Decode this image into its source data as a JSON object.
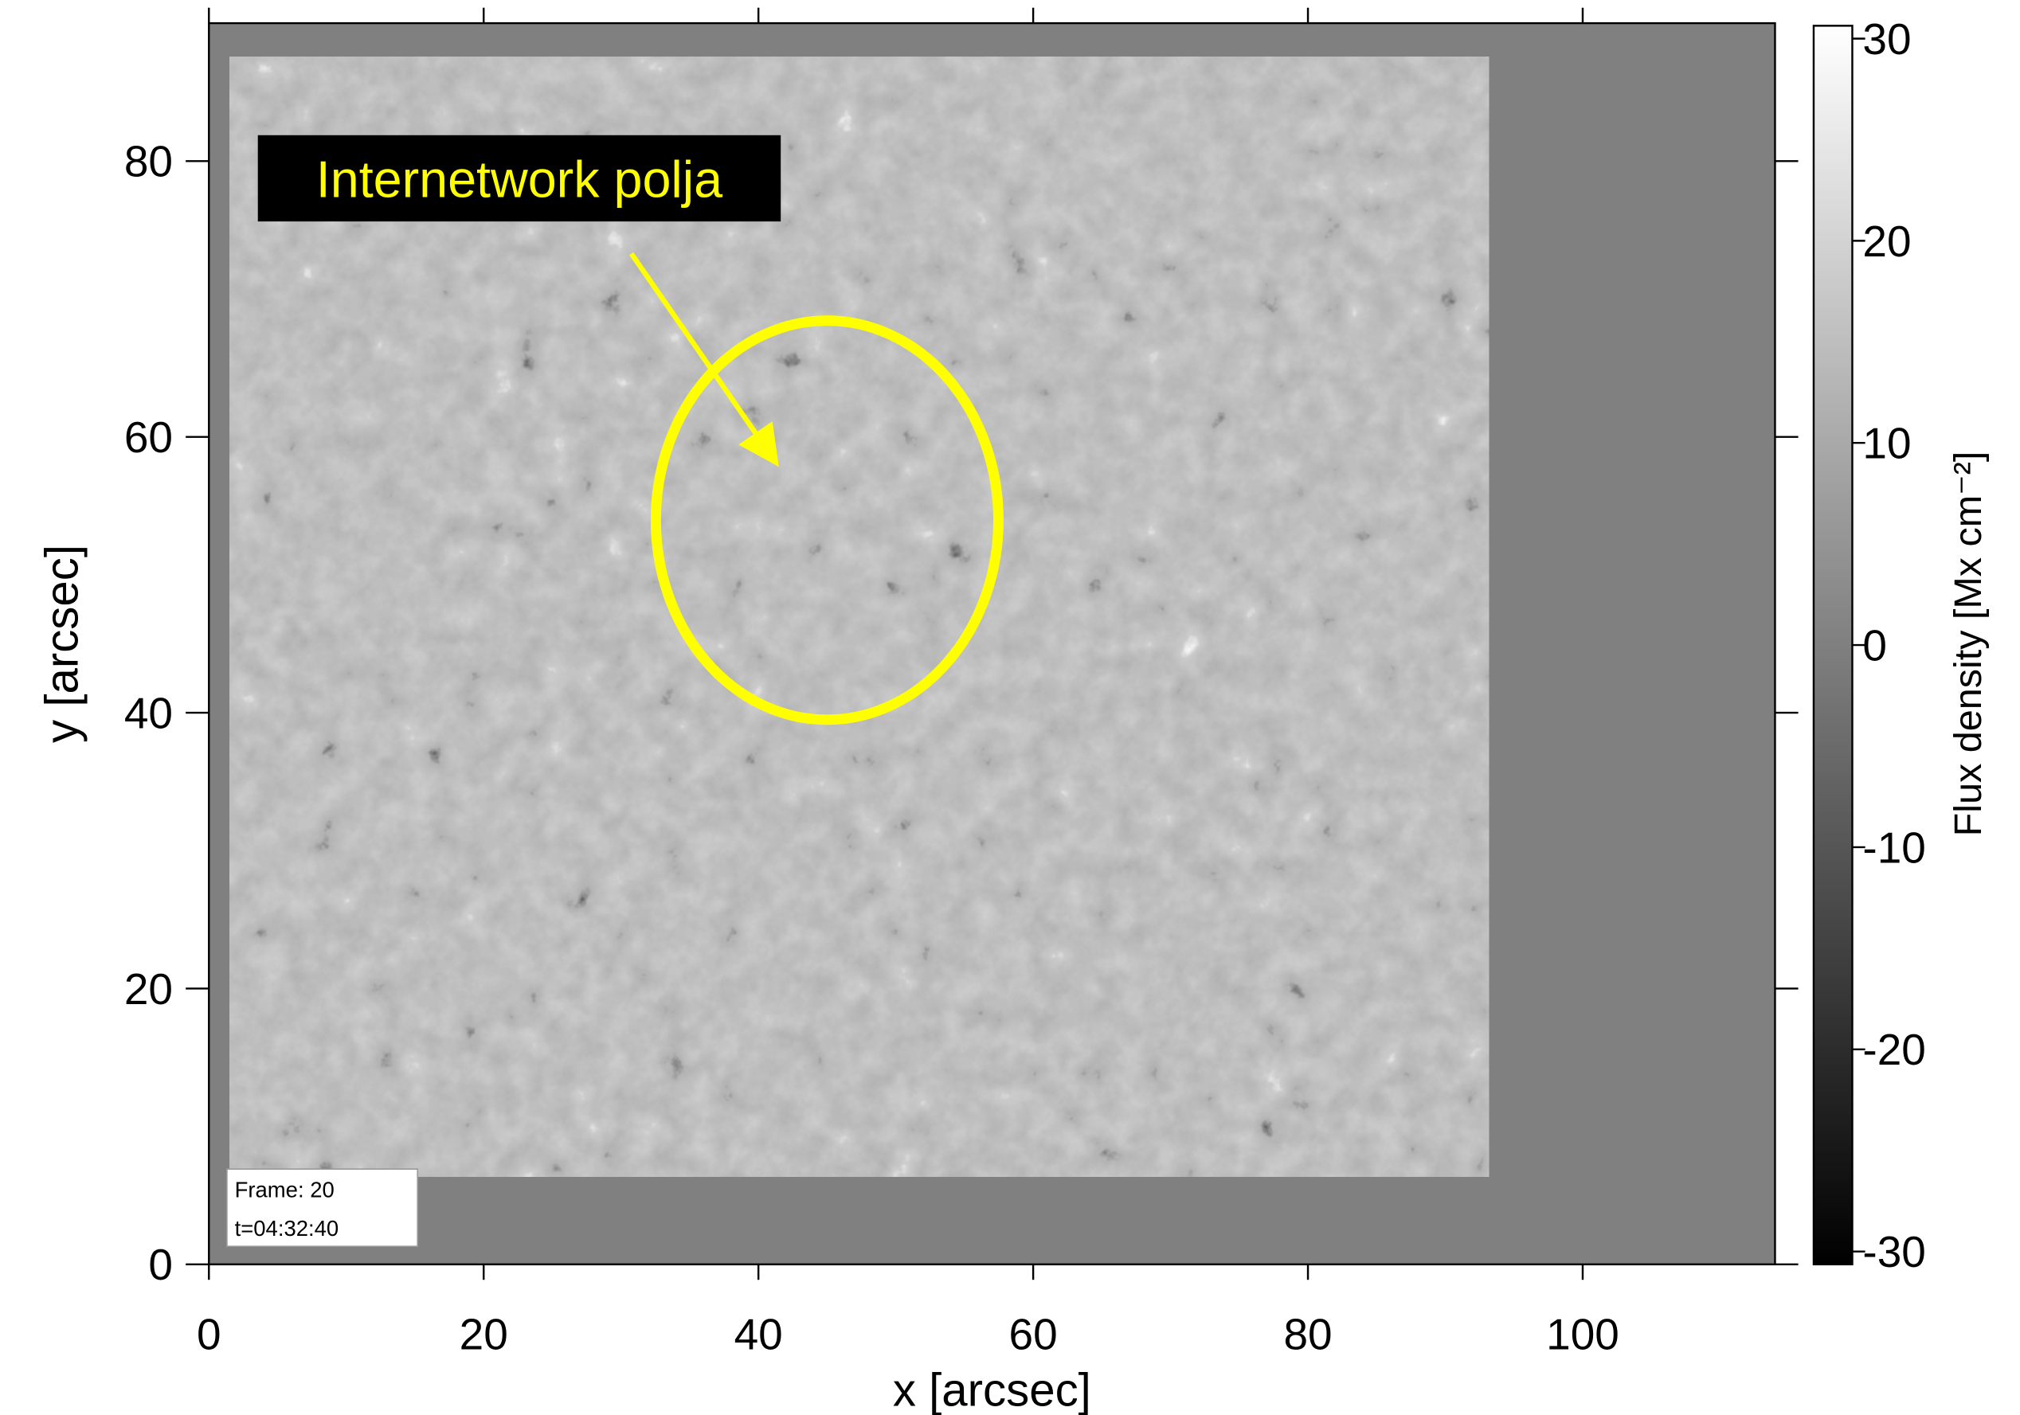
{
  "chart_data": {
    "type": "image",
    "xlabel": "x [arcsec]",
    "ylabel": "y [arcsec]",
    "xlim": [
      0,
      114
    ],
    "ylim": [
      0,
      90
    ],
    "xticks": [
      0,
      20,
      40,
      60,
      80,
      100
    ],
    "yticks": [
      0,
      20,
      40,
      60,
      80
    ],
    "colorbar": {
      "label": "Flux density [Mx cm⁻²]",
      "lim": [
        -30,
        30
      ],
      "ticks": [
        -30,
        -20,
        -10,
        0,
        10,
        20,
        30
      ]
    },
    "annotation": "Internetwork polja",
    "frame_info": [
      "Frame: 20",
      "t=04:32:40"
    ]
  }
}
